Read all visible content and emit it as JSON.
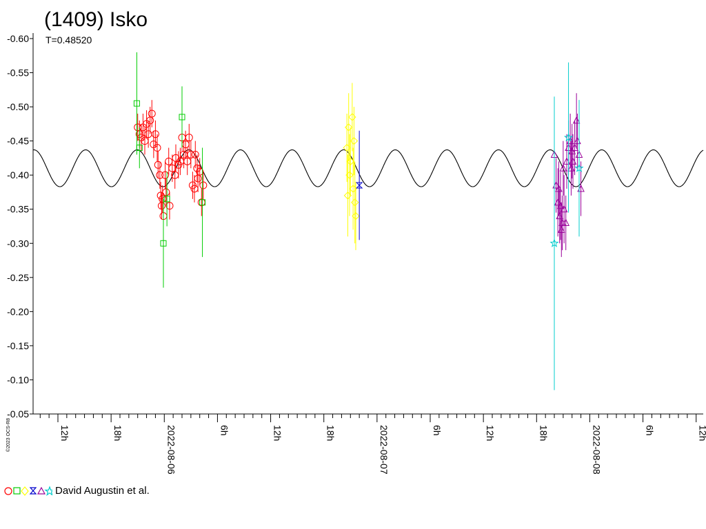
{
  "chart_data": {
    "type": "scatter",
    "title": "(1409) Isko",
    "subtitle": "T=0.48520",
    "xlabel": "",
    "ylabel": "",
    "x_unit": "hours since 2022-08-06 00:00 UT",
    "xlim": [
      -14.8,
      60.8
    ],
    "ylim": [
      -0.05,
      -0.6
    ],
    "y_ticks": [
      "-0.05",
      "-0.10",
      "-0.15",
      "-0.20",
      "-0.25",
      "-0.30",
      "-0.35",
      "-0.40",
      "-0.45",
      "-0.50",
      "-0.55",
      "-0.60"
    ],
    "y_tick_values": [
      -0.05,
      -0.1,
      -0.15,
      -0.2,
      -0.25,
      -0.3,
      -0.35,
      -0.4,
      -0.45,
      -0.5,
      -0.55,
      -0.6
    ],
    "x_ticks": [
      {
        "h": -12,
        "label": "12h"
      },
      {
        "h": -6,
        "label": "18h"
      },
      {
        "h": 0,
        "label": "2022-08-06"
      },
      {
        "h": 6,
        "label": "6h"
      },
      {
        "h": 12,
        "label": "12h"
      },
      {
        "h": 18,
        "label": "18h"
      },
      {
        "h": 24,
        "label": "2022-08-07"
      },
      {
        "h": 30,
        "label": "6h"
      },
      {
        "h": 36,
        "label": "12h"
      },
      {
        "h": 42,
        "label": "18h"
      },
      {
        "h": 48,
        "label": "2022-08-08"
      },
      {
        "h": 54,
        "label": "6h"
      },
      {
        "h": 60,
        "label": "12h"
      }
    ],
    "model_curve": {
      "period_days": 0.4852,
      "amplitude": 0.027,
      "mean": -0.41,
      "peak_at_h": -3.05
    },
    "legend": {
      "text": "David Augustin et al.",
      "placement": "bottom-left"
    },
    "copyright": "©2023 OCS-R8",
    "series": [
      {
        "color": "#ff0000",
        "marker": "circle",
        "points": [
          [
            -3.0,
            -0.47,
            0.02
          ],
          [
            -2.8,
            -0.46,
            0.02
          ],
          [
            -2.6,
            -0.455,
            0.02
          ],
          [
            -2.4,
            -0.47,
            0.02
          ],
          [
            -2.2,
            -0.45,
            0.02
          ],
          [
            -2.0,
            -0.475,
            0.02
          ],
          [
            -1.8,
            -0.46,
            0.02
          ],
          [
            -1.6,
            -0.48,
            0.02
          ],
          [
            -1.4,
            -0.49,
            0.02
          ],
          [
            -1.2,
            -0.445,
            0.02
          ],
          [
            -1.0,
            -0.46,
            0.02
          ],
          [
            -0.8,
            -0.44,
            0.02
          ],
          [
            -0.7,
            -0.415,
            0.02
          ],
          [
            -0.5,
            -0.4,
            0.02
          ],
          [
            -0.4,
            -0.37,
            0.02
          ],
          [
            -0.3,
            -0.355,
            0.02
          ],
          [
            -0.2,
            -0.365,
            0.02
          ],
          [
            -0.1,
            -0.34,
            0.02
          ],
          [
            0.1,
            -0.4,
            0.02
          ],
          [
            0.2,
            -0.375,
            0.02
          ],
          [
            0.5,
            -0.42,
            0.02
          ],
          [
            0.6,
            -0.355,
            0.02
          ],
          [
            0.9,
            -0.41,
            0.02
          ],
          [
            1.2,
            -0.4,
            0.02
          ],
          [
            1.3,
            -0.425,
            0.02
          ],
          [
            1.6,
            -0.415,
            0.02
          ],
          [
            1.8,
            -0.42,
            0.02
          ],
          [
            2.0,
            -0.455,
            0.02
          ],
          [
            2.2,
            -0.43,
            0.02
          ],
          [
            2.4,
            -0.445,
            0.02
          ],
          [
            2.6,
            -0.42,
            0.02
          ],
          [
            2.8,
            -0.455,
            0.02
          ],
          [
            3.0,
            -0.43,
            0.02
          ],
          [
            3.2,
            -0.385,
            0.02
          ],
          [
            3.4,
            -0.38,
            0.02
          ],
          [
            3.5,
            -0.43,
            0.02
          ],
          [
            3.7,
            -0.41,
            0.02
          ],
          [
            3.8,
            -0.395,
            0.02
          ],
          [
            4.0,
            -0.405,
            0.02
          ],
          [
            4.2,
            -0.36,
            0.02
          ],
          [
            4.4,
            -0.385,
            0.02
          ]
        ]
      },
      {
        "color": "#00cc00",
        "marker": "square",
        "points": [
          [
            -3.1,
            -0.505,
            0.075
          ],
          [
            -2.8,
            -0.44,
            0.03
          ],
          [
            -0.1,
            -0.3,
            0.065
          ],
          [
            0.3,
            -0.365,
            0.04
          ],
          [
            2.0,
            -0.485,
            0.045
          ],
          [
            4.3,
            -0.36,
            0.08
          ]
        ]
      },
      {
        "color": "#ffff00",
        "marker": "diamond",
        "points": [
          [
            20.6,
            -0.44,
            0.05
          ],
          [
            20.8,
            -0.47,
            0.05
          ],
          [
            20.9,
            -0.4,
            0.06
          ],
          [
            21.0,
            -0.42,
            0.05
          ],
          [
            21.2,
            -0.485,
            0.05
          ],
          [
            21.3,
            -0.38,
            0.06
          ],
          [
            21.5,
            -0.36,
            0.06
          ],
          [
            21.6,
            -0.34,
            0.05
          ],
          [
            21.4,
            -0.45,
            0.05
          ],
          [
            20.7,
            -0.37,
            0.06
          ]
        ]
      },
      {
        "color": "#0000cc",
        "marker": "hourglass",
        "points": [
          [
            22.0,
            -0.385,
            0.08
          ]
        ]
      },
      {
        "color": "#990099",
        "marker": "triangle",
        "points": [
          [
            44.0,
            -0.43,
            0.04
          ],
          [
            44.2,
            -0.385,
            0.04
          ],
          [
            44.4,
            -0.36,
            0.05
          ],
          [
            44.5,
            -0.38,
            0.04
          ],
          [
            44.6,
            -0.34,
            0.04
          ],
          [
            44.7,
            -0.355,
            0.05
          ],
          [
            44.8,
            -0.32,
            0.04
          ],
          [
            44.9,
            -0.33,
            0.04
          ],
          [
            45.0,
            -0.41,
            0.04
          ],
          [
            45.1,
            -0.35,
            0.05
          ],
          [
            45.3,
            -0.33,
            0.04
          ],
          [
            45.4,
            -0.42,
            0.04
          ],
          [
            45.6,
            -0.44,
            0.04
          ],
          [
            45.8,
            -0.45,
            0.04
          ],
          [
            45.9,
            -0.41,
            0.04
          ],
          [
            46.0,
            -0.435,
            0.04
          ],
          [
            46.1,
            -0.42,
            0.04
          ],
          [
            46.3,
            -0.44,
            0.04
          ],
          [
            46.5,
            -0.48,
            0.04
          ],
          [
            46.6,
            -0.45,
            0.04
          ],
          [
            46.8,
            -0.43,
            0.04
          ],
          [
            47.0,
            -0.38,
            0.04
          ]
        ]
      },
      {
        "color": "#00cccc",
        "marker": "star",
        "points": [
          [
            44.0,
            -0.3,
            0.215
          ],
          [
            45.6,
            -0.455,
            0.11
          ],
          [
            46.8,
            -0.41,
            0.1
          ]
        ]
      }
    ]
  }
}
